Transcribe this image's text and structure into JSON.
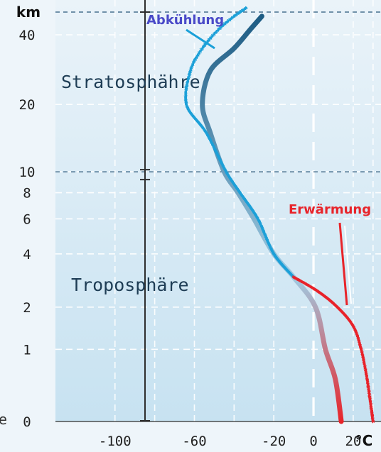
{
  "chart_data": {
    "type": "line",
    "ylabel": "km",
    "xlabel": "°C",
    "y_scale": "log(1+km)",
    "y_ticks": [
      0,
      1,
      2,
      4,
      6,
      8,
      10,
      20,
      40
    ],
    "x_ticks": [
      -100,
      -60,
      -20,
      0,
      20
    ],
    "xlim": [
      -130,
      34
    ],
    "ylim": [
      0,
      50
    ],
    "layer_labels": {
      "stratosphere": "Stratosphähre",
      "troposphere": "Troposphäre"
    },
    "layer_boundary_km": 10,
    "top_line_km": 50,
    "annotations": {
      "cooling": "Abkühlung",
      "warming": "Erwärmung"
    },
    "left_edge_fragment": "e",
    "series": [
      {
        "role": "reference-profile",
        "color_top": "#1b5a82",
        "color_mid": "#9fcbe3",
        "color_bottom": "#e8242a",
        "points": [
          {
            "x": 14,
            "y": 0
          },
          {
            "x": 11,
            "y": 0.5
          },
          {
            "x": 6,
            "y": 1
          },
          {
            "x": 1,
            "y": 2
          },
          {
            "x": -10,
            "y": 3
          },
          {
            "x": -20,
            "y": 4
          },
          {
            "x": -30,
            "y": 6
          },
          {
            "x": -38,
            "y": 8
          },
          {
            "x": -45,
            "y": 10
          },
          {
            "x": -52,
            "y": 15
          },
          {
            "x": -56,
            "y": 20
          },
          {
            "x": -52,
            "y": 28
          },
          {
            "x": -40,
            "y": 35
          },
          {
            "x": -32,
            "y": 42
          },
          {
            "x": -26,
            "y": 48
          }
        ]
      },
      {
        "role": "upper-cooled-profile",
        "color": "#1aa0d8",
        "points": [
          {
            "x": -10,
            "y": 3
          },
          {
            "x": -20,
            "y": 4
          },
          {
            "x": -28,
            "y": 6
          },
          {
            "x": -37,
            "y": 8
          },
          {
            "x": -44,
            "y": 10
          },
          {
            "x": -54,
            "y": 15
          },
          {
            "x": -64,
            "y": 20
          },
          {
            "x": -62,
            "y": 28
          },
          {
            "x": -56,
            "y": 35
          },
          {
            "x": -48,
            "y": 42
          },
          {
            "x": -40,
            "y": 48
          },
          {
            "x": -34,
            "y": 52
          }
        ]
      },
      {
        "role": "lower-warmed-profile",
        "color": "#e8242a",
        "points": [
          {
            "x": -10,
            "y": 3
          },
          {
            "x": 2,
            "y": 2.5
          },
          {
            "x": 12,
            "y": 2
          },
          {
            "x": 20,
            "y": 1.5
          },
          {
            "x": 24,
            "y": 1
          },
          {
            "x": 27,
            "y": 0.5
          },
          {
            "x": 30,
            "y": 0
          }
        ]
      }
    ]
  }
}
